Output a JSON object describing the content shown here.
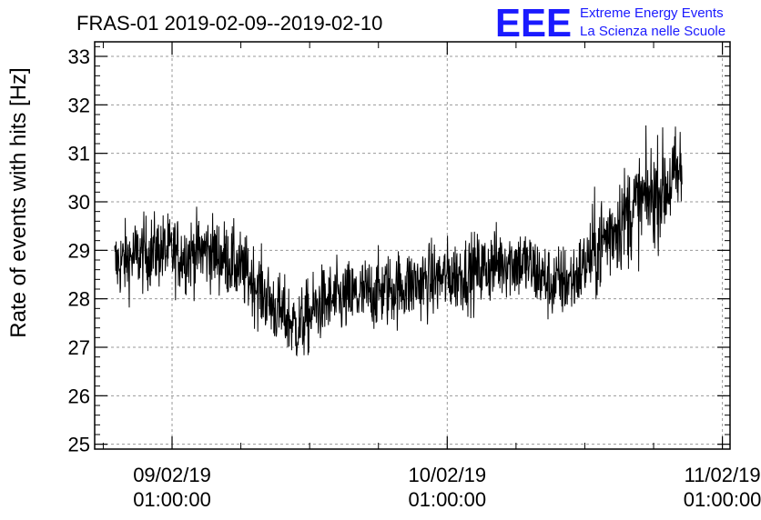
{
  "header": {
    "title": "FRAS-01 2019-02-09--2019-02-10",
    "logo_letters": "EEE",
    "logo_line1": "Extreme Energy Events",
    "logo_line2": "La Scienza nelle Scuole",
    "logo_color": "#1a1aff"
  },
  "chart_data": {
    "type": "line",
    "title": "FRAS-01 2019-02-09--2019-02-10",
    "xlabel": "",
    "ylabel": "Rate of events with hits [Hz]",
    "ylim": [
      24.9,
      33.3
    ],
    "y_ticks": [
      "25",
      "26",
      "27",
      "28",
      "29",
      "30",
      "31",
      "32",
      "33"
    ],
    "xlim": [
      "2019-02-08T18:15:00",
      "2019-02-11T01:40:00"
    ],
    "x_ticks": [
      {
        "date": "09/02/19",
        "time": "01:00:00"
      },
      {
        "date": "10/02/19",
        "time": "01:00:00"
      },
      {
        "date": "11/02/19",
        "time": "01:00:00"
      }
    ],
    "x_tick_values": [
      "2019-02-09T01:00:00",
      "2019-02-10T01:00:00",
      "2019-02-11T01:00:00"
    ],
    "grid": true,
    "line_color": "#000000",
    "series": [
      {
        "x": [
          "2019-02-08T20:00:00",
          "2019-02-08T22:00:00",
          "2019-02-09T00:00:00",
          "2019-02-09T02:00:00",
          "2019-02-09T04:00:00",
          "2019-02-09T06:00:00",
          "2019-02-09T08:00:00",
          "2019-02-09T10:00:00",
          "2019-02-09T12:00:00",
          "2019-02-09T14:00:00",
          "2019-02-09T16:00:00",
          "2019-02-09T18:00:00",
          "2019-02-09T20:00:00",
          "2019-02-09T22:00:00",
          "2019-02-10T00:00:00",
          "2019-02-10T02:00:00",
          "2019-02-10T04:00:00",
          "2019-02-10T06:00:00",
          "2019-02-10T08:00:00",
          "2019-02-10T10:00:00",
          "2019-02-10T12:00:00",
          "2019-02-10T14:00:00",
          "2019-02-10T16:00:00",
          "2019-02-10T18:00:00",
          "2019-02-10T20:00:00",
          "2019-02-10T21:30:00"
        ],
        "y": [
          28.7,
          28.9,
          29.0,
          28.9,
          29.0,
          28.8,
          28.4,
          27.8,
          27.4,
          27.9,
          28.0,
          28.1,
          28.2,
          28.3,
          28.4,
          28.5,
          28.6,
          28.8,
          28.7,
          28.3,
          28.4,
          29.0,
          29.6,
          30.0,
          30.3,
          30.6
        ]
      }
    ]
  }
}
